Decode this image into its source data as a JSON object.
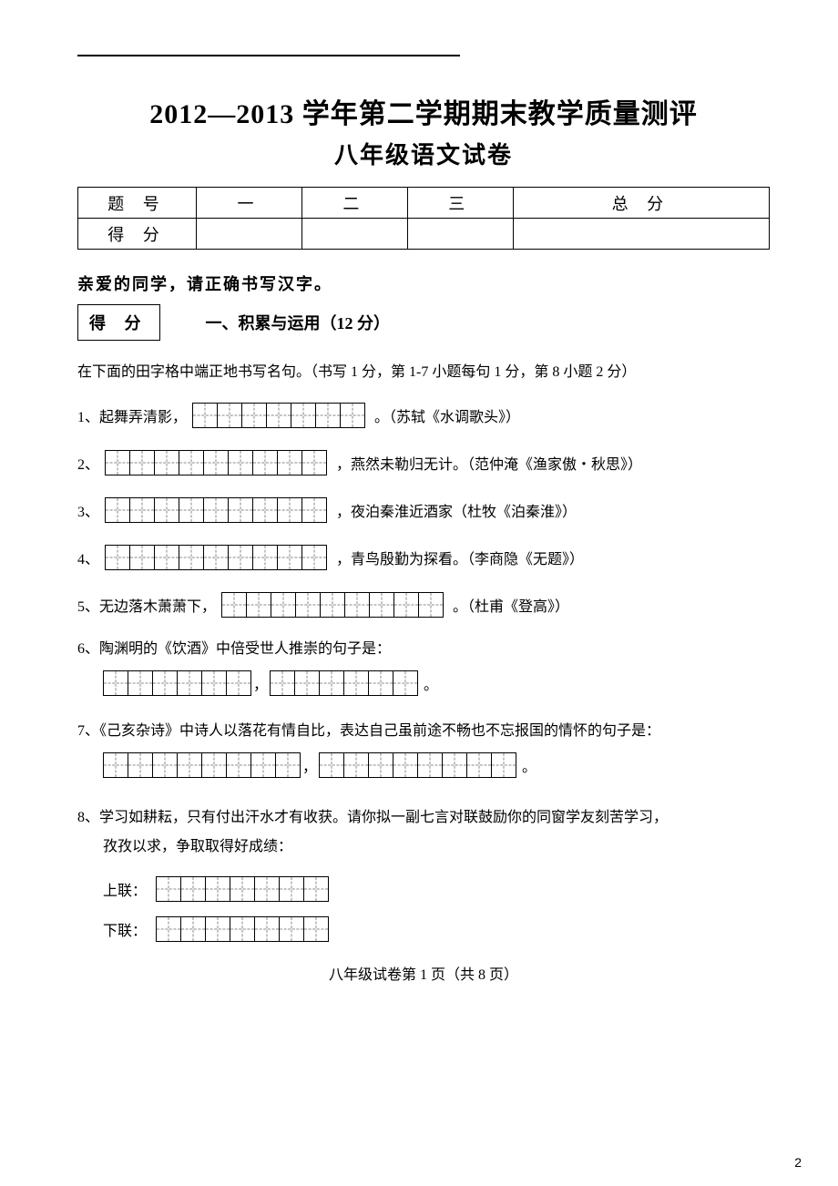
{
  "page_number_corner": "2",
  "title_line1": "2012—2013 学年第二学期期末教学质量测评",
  "title_line2": "八年级语文试卷",
  "score_table": {
    "row1": [
      "题  号",
      "一",
      "二",
      "三",
      "总  分"
    ],
    "row2": [
      "得  分",
      "",
      "",
      "",
      ""
    ]
  },
  "instruction": "亲爱的同学，请正确书写汉字。",
  "defen_label": "得 分",
  "section1_title": "一、积累与运用（12 分）",
  "sub_instruction": "在下面的田字格中端正地书写名句。（书写 1 分，第 1-7 小题每句 1 分，第 8 小题 2 分）",
  "q1": {
    "label": "1、起舞弄清影，",
    "cells": 7,
    "after": "。（苏轼《水调歌头》）"
  },
  "q2": {
    "label": "2、",
    "cells": 9,
    "after": "，燕然未勒归无计。（范仲淹《渔家傲・秋思》）"
  },
  "q3": {
    "label": "3、",
    "cells": 9,
    "after": "，夜泊秦淮近酒家（杜牧《泊秦淮》）"
  },
  "q4": {
    "label": "4、",
    "cells": 9,
    "after": "，青鸟殷勤为探看。（李商隐《无题》）"
  },
  "q5": {
    "label": "5、无边落木萧萧下，",
    "cells": 9,
    "after": "。（杜甫《登高》）"
  },
  "q6": {
    "line": "6、陶渊明的《饮酒》中倍受世人推崇的句子是：",
    "cells_a": 6,
    "cells_b": 6
  },
  "q7": {
    "line": "7、《己亥杂诗》中诗人以落花有情自比，表达自己虽前途不畅也不忘报国的情怀的句子是：",
    "cells_a": 8,
    "cells_b": 8
  },
  "q8": {
    "line1": "8、学习如耕耘，只有付出汗水才有收获。请你拟一副七言对联鼓励你的同窗学友刻苦学习，",
    "line2": "孜孜以求，争取取得好成绩：",
    "upper_label": "上联：",
    "lower_label": "下联：",
    "cells": 7
  },
  "footer": "八年级试卷第 1 页（共 8 页）",
  "colors": {
    "text": "#000000",
    "background": "#ffffff",
    "dash": "#888888"
  }
}
